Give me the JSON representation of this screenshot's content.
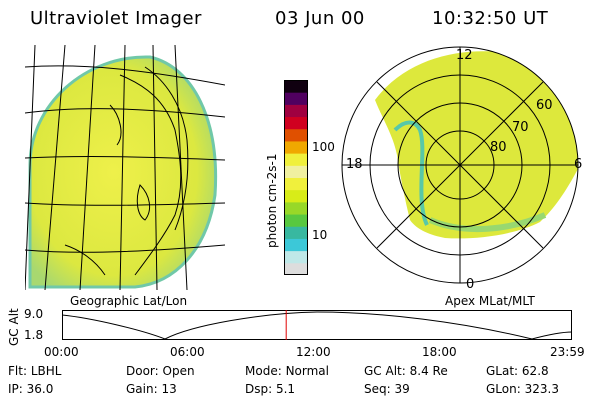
{
  "header": {
    "title": "Ultraviolet Imager",
    "date": "03 Jun 00",
    "time": "10:32:50 UT"
  },
  "geo_panel": {
    "label": "Geographic Lat/Lon"
  },
  "polar_panel": {
    "label": "Apex MLat/MLT",
    "mlt_labels": {
      "top": "12",
      "left": "18",
      "right": "6",
      "bottom": "0"
    },
    "lat_labels": [
      "60",
      "70",
      "80"
    ]
  },
  "colorbar": {
    "unit_label": "photon cm-2s-1",
    "ticks": [
      "100",
      "10"
    ],
    "colors": [
      "#dddddd",
      "#bfe8e8",
      "#3cc8d8",
      "#38b8a0",
      "#58c840",
      "#98d828",
      "#d8ec18",
      "#f0f03c",
      "#f0f0a0",
      "#f0f03c",
      "#f0a800",
      "#e05000",
      "#d00020",
      "#a00040",
      "#500060",
      "#100010"
    ]
  },
  "alt_plot": {
    "label": "GC Alt",
    "y_ticks": [
      "9.0",
      "1.8"
    ],
    "x_ticks": [
      "00:00",
      "06:00",
      "12:00",
      "18:00",
      "23:59"
    ],
    "current_time_hours": 10.55,
    "marker_color": "#e00000"
  },
  "info": {
    "row1": [
      {
        "label": "Flt:",
        "value": "LBHL"
      },
      {
        "label": "Door:",
        "value": "Open"
      },
      {
        "label": "Mode:",
        "value": "Normal"
      },
      {
        "label": "GC Alt:",
        "value": "8.4 Re"
      },
      {
        "label": "GLat:",
        "value": "62.8"
      }
    ],
    "row2": [
      {
        "label": "IP:",
        "value": "36.0"
      },
      {
        "label": "Gain:",
        "value": "13"
      },
      {
        "label": "Dsp:",
        "value": "5.1"
      },
      {
        "label": "Seq:",
        "value": "39"
      },
      {
        "label": "GLon:",
        "value": "323.3"
      }
    ]
  },
  "theme": {
    "image_fill": "#e8ec3c",
    "image_fill_2": "#c8e048",
    "edge_color": "#58c8a8"
  }
}
